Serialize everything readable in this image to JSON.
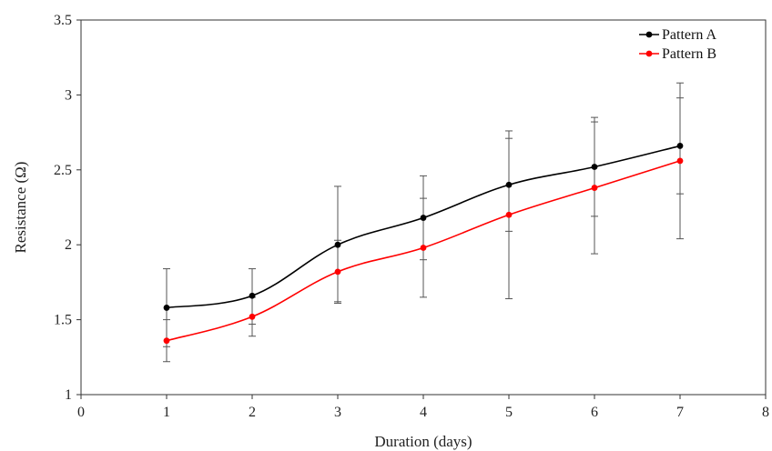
{
  "chart_data": {
    "type": "line",
    "title": "",
    "xlabel": "Duration (days)",
    "ylabel": "Resistance (Ω)",
    "xlim": [
      0,
      8
    ],
    "ylim": [
      1,
      3.5
    ],
    "x_ticks": [
      "0",
      "1",
      "2",
      "3",
      "4",
      "5",
      "6",
      "7",
      "8"
    ],
    "y_ticks": [
      "1",
      "1.5",
      "2",
      "2.5",
      "3",
      "3.5"
    ],
    "grid": false,
    "legend_position": "top-right",
    "x": [
      1,
      2,
      3,
      4,
      5,
      6,
      7
    ],
    "series": [
      {
        "name": "Pattern A",
        "color": "#000000",
        "values": [
          1.58,
          1.66,
          2.0,
          2.18,
          2.4,
          2.52,
          2.66
        ],
        "error_low": [
          1.32,
          1.47,
          1.62,
          1.9,
          2.09,
          2.19,
          2.34
        ],
        "error_high": [
          1.84,
          1.84,
          2.39,
          2.46,
          2.71,
          2.85,
          2.98
        ]
      },
      {
        "name": "Pattern B",
        "color": "#ff0000",
        "values": [
          1.36,
          1.52,
          1.82,
          1.98,
          2.2,
          2.38,
          2.56
        ],
        "error_low": [
          1.22,
          1.39,
          1.61,
          1.65,
          1.64,
          1.94,
          2.04
        ],
        "error_high": [
          1.5,
          1.65,
          2.03,
          2.31,
          2.76,
          2.82,
          3.08
        ]
      }
    ]
  }
}
